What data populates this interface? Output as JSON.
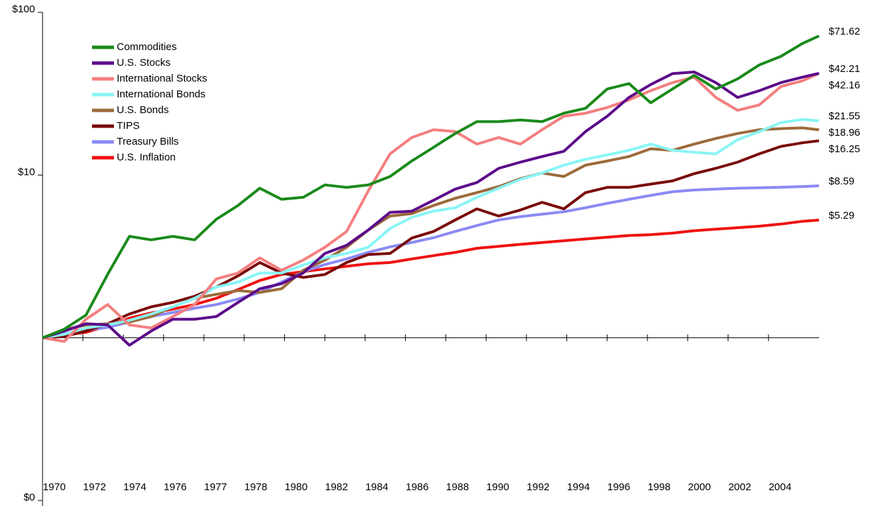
{
  "chart_data": {
    "type": "line",
    "log_scale": true,
    "x": [
      1970,
      1971,
      1972,
      1973,
      1974,
      1975,
      1976,
      1977,
      1978,
      1979,
      1980,
      1981,
      1982,
      1983,
      1984,
      1985,
      1986,
      1987,
      1988,
      1989,
      1990,
      1991,
      1992,
      1993,
      1994,
      1995,
      1996,
      1997,
      1998,
      1999,
      2000,
      2001,
      2002,
      2003,
      2004,
      2005,
      2005.75
    ],
    "xlim": [
      1970,
      2005.75
    ],
    "x_labels": [
      "1970",
      "1972",
      "1974",
      "1976",
      "1977",
      "1978",
      "1980",
      "1982",
      "1984",
      "1986",
      "1988",
      "1990",
      "1992",
      "1994",
      "1996",
      "1998",
      "2000",
      "2002",
      "2004"
    ],
    "ylim": [
      0.1,
      100
    ],
    "yticks": [
      {
        "value": 0.1,
        "label": "$0"
      },
      {
        "value": 10,
        "label": "$10"
      },
      {
        "value": 100,
        "label": "$100"
      }
    ],
    "x_axis_crossing": 1,
    "legend": "top-left",
    "series": [
      {
        "name": "Commodities",
        "color": "#1a8a1a",
        "values": [
          1.0,
          1.13,
          1.38,
          2.46,
          4.2,
          4.0,
          4.2,
          4.0,
          5.35,
          6.5,
          8.3,
          7.1,
          7.3,
          8.7,
          8.4,
          8.7,
          9.8,
          12.2,
          14.8,
          18,
          21.3,
          21.3,
          21.8,
          21.3,
          24,
          25.7,
          33.8,
          36.5,
          27.8,
          33.8,
          41,
          33.8,
          39,
          47.5,
          53.7,
          64.5,
          71.62
        ],
        "value_labels": [
          null,
          null,
          null,
          null,
          null,
          null,
          null,
          null,
          null,
          null,
          null,
          null,
          null,
          null,
          null,
          null,
          null,
          null,
          null,
          null,
          null,
          null,
          null,
          null,
          null,
          null,
          null,
          null,
          null,
          null,
          null,
          null,
          null,
          null,
          null,
          null,
          "$71.62"
        ]
      },
      {
        "name": "U.S. Stocks",
        "color": "#5c0a8a",
        "values": [
          1.0,
          1.1,
          1.22,
          1.2,
          0.9,
          1.1,
          1.3,
          1.3,
          1.35,
          1.65,
          2.0,
          2.15,
          2.5,
          3.3,
          3.7,
          4.6,
          5.9,
          6.0,
          7.0,
          8.2,
          9.0,
          11.0,
          12.0,
          13.0,
          14.0,
          18.5,
          23,
          30,
          36,
          42,
          43,
          37,
          30,
          33,
          37,
          40,
          42.21
        ],
        "value_labels": [
          null,
          null,
          null,
          null,
          null,
          null,
          null,
          null,
          null,
          null,
          null,
          null,
          null,
          null,
          null,
          null,
          null,
          null,
          null,
          null,
          null,
          null,
          null,
          null,
          null,
          null,
          null,
          null,
          null,
          null,
          null,
          null,
          null,
          null,
          null,
          null,
          "$42.21"
        ]
      },
      {
        "name": "International Stocks",
        "color": "#f47f7f",
        "values": [
          1.0,
          0.95,
          1.3,
          1.6,
          1.2,
          1.15,
          1.35,
          1.6,
          2.3,
          2.5,
          3.1,
          2.6,
          3.0,
          3.6,
          4.5,
          8.0,
          13.5,
          17,
          19,
          18.5,
          15.5,
          17,
          15.5,
          19,
          23,
          24,
          26,
          29,
          33,
          37,
          40,
          30,
          25,
          27,
          35,
          38,
          42.16
        ],
        "value_labels": [
          null,
          null,
          null,
          null,
          null,
          null,
          null,
          null,
          null,
          null,
          null,
          null,
          null,
          null,
          null,
          null,
          null,
          null,
          null,
          null,
          null,
          null,
          null,
          null,
          null,
          null,
          null,
          null,
          null,
          null,
          null,
          null,
          null,
          null,
          null,
          null,
          "$42.16"
        ]
      },
      {
        "name": "International Bonds",
        "color": "#8af5f5",
        "values": [
          1.0,
          1.05,
          1.15,
          1.2,
          1.28,
          1.4,
          1.55,
          1.75,
          2.05,
          2.2,
          2.5,
          2.5,
          2.8,
          3.1,
          3.3,
          3.6,
          4.7,
          5.5,
          6.0,
          6.3,
          7.3,
          8.3,
          9.4,
          10.3,
          11.5,
          12.5,
          13.3,
          14.2,
          15.5,
          14.2,
          13.8,
          13.5,
          16.5,
          18.5,
          21,
          22,
          21.55
        ],
        "value_labels": [
          null,
          null,
          null,
          null,
          null,
          null,
          null,
          null,
          null,
          null,
          null,
          null,
          null,
          null,
          null,
          null,
          null,
          null,
          null,
          null,
          null,
          null,
          null,
          null,
          null,
          null,
          null,
          null,
          null,
          null,
          null,
          null,
          null,
          null,
          null,
          null,
          "$21.55"
        ]
      },
      {
        "name": "U.S. Bonds",
        "color": "#9c6a3a",
        "values": [
          1.0,
          1.12,
          1.2,
          1.22,
          1.25,
          1.35,
          1.55,
          1.75,
          1.85,
          1.95,
          1.9,
          2.0,
          2.6,
          3.0,
          3.6,
          4.6,
          5.6,
          5.8,
          6.5,
          7.2,
          7.8,
          8.5,
          9.5,
          10.3,
          9.8,
          11.5,
          12.2,
          13.0,
          14.5,
          14.2,
          15.5,
          16.8,
          18.0,
          19.0,
          19.3,
          19.5,
          18.96
        ],
        "value_labels": [
          null,
          null,
          null,
          null,
          null,
          null,
          null,
          null,
          null,
          null,
          null,
          null,
          null,
          null,
          null,
          null,
          null,
          null,
          null,
          null,
          null,
          null,
          null,
          null,
          null,
          null,
          null,
          null,
          null,
          null,
          null,
          null,
          null,
          null,
          null,
          null,
          "$18.96"
        ]
      },
      {
        "name": "TIPS",
        "color": "#7a0a0a",
        "values": [
          1.0,
          1.02,
          1.1,
          1.22,
          1.4,
          1.55,
          1.65,
          1.8,
          2.05,
          2.4,
          2.9,
          2.5,
          2.35,
          2.45,
          2.9,
          3.25,
          3.3,
          4.1,
          4.5,
          5.3,
          6.2,
          5.6,
          6.1,
          6.8,
          6.2,
          7.8,
          8.4,
          8.4,
          8.8,
          9.2,
          10.2,
          11.0,
          12.0,
          13.5,
          15.0,
          15.8,
          16.25
        ],
        "value_labels": [
          null,
          null,
          null,
          null,
          null,
          null,
          null,
          null,
          null,
          null,
          null,
          null,
          null,
          null,
          null,
          null,
          null,
          null,
          null,
          null,
          null,
          null,
          null,
          null,
          null,
          null,
          null,
          null,
          null,
          null,
          null,
          null,
          null,
          null,
          null,
          null,
          "$16.25"
        ]
      },
      {
        "name": "Treasury Bills",
        "color": "#8a8af5",
        "values": [
          1.0,
          1.06,
          1.11,
          1.16,
          1.25,
          1.35,
          1.43,
          1.52,
          1.6,
          1.73,
          1.9,
          2.2,
          2.55,
          2.82,
          3.05,
          3.35,
          3.62,
          3.85,
          4.12,
          4.5,
          4.9,
          5.3,
          5.55,
          5.75,
          5.95,
          6.3,
          6.7,
          7.1,
          7.5,
          7.9,
          8.1,
          8.2,
          8.3,
          8.35,
          8.42,
          8.5,
          8.59
        ],
        "value_labels": [
          null,
          null,
          null,
          null,
          null,
          null,
          null,
          null,
          null,
          null,
          null,
          null,
          null,
          null,
          null,
          null,
          null,
          null,
          null,
          null,
          null,
          null,
          null,
          null,
          null,
          null,
          null,
          null,
          null,
          null,
          null,
          null,
          null,
          null,
          null,
          null,
          "$8.59"
        ]
      },
      {
        "name": "U.S. Inflation",
        "color": "#f01010",
        "values": [
          1.0,
          1.04,
          1.08,
          1.18,
          1.32,
          1.42,
          1.5,
          1.6,
          1.75,
          1.98,
          2.25,
          2.45,
          2.55,
          2.65,
          2.75,
          2.85,
          2.9,
          3.05,
          3.2,
          3.35,
          3.55,
          3.65,
          3.75,
          3.85,
          3.95,
          4.05,
          4.15,
          4.25,
          4.3,
          4.4,
          4.55,
          4.65,
          4.75,
          4.85,
          5.0,
          5.2,
          5.29
        ],
        "value_labels": [
          null,
          null,
          null,
          null,
          null,
          null,
          null,
          null,
          null,
          null,
          null,
          null,
          null,
          null,
          null,
          null,
          null,
          null,
          null,
          null,
          null,
          null,
          null,
          null,
          null,
          null,
          null,
          null,
          null,
          null,
          null,
          null,
          null,
          null,
          null,
          null,
          "$5.29"
        ]
      }
    ]
  }
}
